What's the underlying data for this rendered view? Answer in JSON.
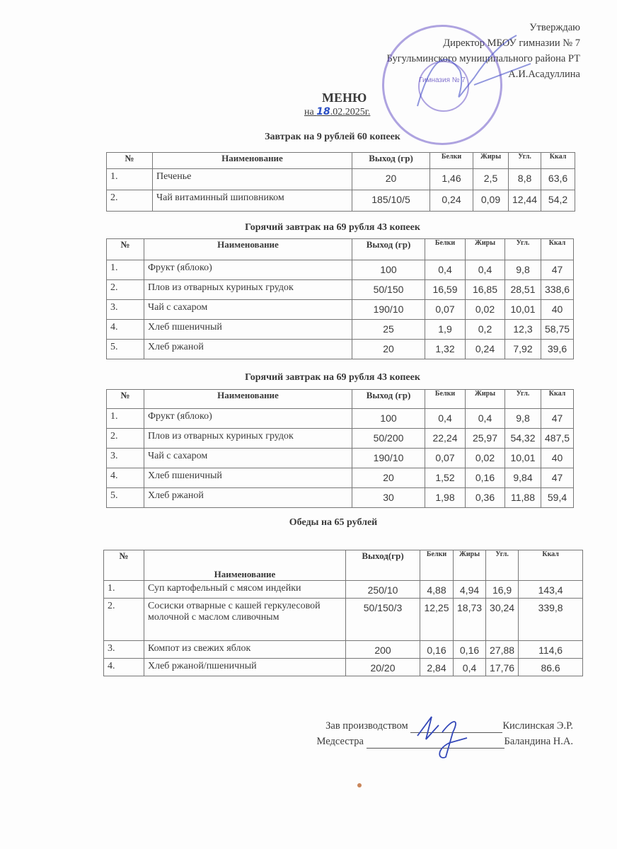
{
  "approval": {
    "line1": "Утверждаю",
    "line2": "Директор МБОУ гимназии № 7",
    "line3": "Бугульминского муниципального района РТ",
    "line4": "А.И.Асадуллина"
  },
  "stamp": {
    "text": "Гимназия № 7",
    "color": "#6e5ac8"
  },
  "title": "МЕНЮ",
  "date": {
    "prefix": "на ",
    "day": "18",
    "rest": ".02.2025г."
  },
  "sections": [
    {
      "title": "Завтрак на 9 рублей 60 копеек",
      "headers": [
        "№",
        "Наименование",
        "Выход (гр)",
        "Белки",
        "Жиры",
        "Угл.",
        "Ккал"
      ],
      "rows": [
        [
          "1.",
          "Печенье",
          "20",
          "1,46",
          "2,5",
          "8,8",
          "63,6"
        ],
        [
          "2.",
          "Чай витаминный шиповником",
          "185/10/5",
          "0,24",
          "0,09",
          "12,44",
          "54,2"
        ]
      ]
    },
    {
      "title": "Горячий завтрак на 69 рубля 43 копеек",
      "headers": [
        "№",
        "Наименование",
        "Выход (гр)",
        "Белки",
        "Жиры",
        "Угл.",
        "Ккал"
      ],
      "rows": [
        [
          "1.",
          "Фрукт (яблоко)",
          "100",
          "0,4",
          "0,4",
          "9,8",
          "47"
        ],
        [
          "2.",
          "Плов из отварных куриных грудок",
          "50/150",
          "16,59",
          "16,85",
          "28,51",
          "338,6"
        ],
        [
          "3.",
          "Чай с сахаром",
          "190/10",
          "0,07",
          "0,02",
          "10,01",
          "40"
        ],
        [
          "4.",
          "Хлеб пшеничный",
          "25",
          "1,9",
          "0,2",
          "12,3",
          "58,75"
        ],
        [
          "5.",
          "Хлеб ржаной",
          "20",
          "1,32",
          "0,24",
          "7,92",
          "39,6"
        ]
      ]
    },
    {
      "title": "Горячий завтрак на 69 рубля 43 копеек",
      "headers": [
        "№",
        "Наименование",
        "Выход (гр)",
        "Белки",
        "Жиры",
        "Угл.",
        "Ккал"
      ],
      "rows": [
        [
          "1.",
          "Фрукт (яблоко)",
          "100",
          "0,4",
          "0,4",
          "9,8",
          "47"
        ],
        [
          "2.",
          "Плов из отварных куриных грудок",
          "50/200",
          "22,24",
          "25,97",
          "54,32",
          "487,5"
        ],
        [
          "3.",
          "Чай с сахаром",
          "190/10",
          "0,07",
          "0,02",
          "10,01",
          "40"
        ],
        [
          "4.",
          "Хлеб пшеничный",
          "20",
          "1,52",
          "0,16",
          "9,84",
          "47"
        ],
        [
          "5.",
          "Хлеб ржаной",
          "30",
          "1,98",
          "0,36",
          "11,88",
          "59,4"
        ]
      ]
    },
    {
      "title": "Обеды на 65 рублей",
      "headers": [
        "№",
        "Наименование",
        "Выход(гр)",
        "Белки",
        "Жиры",
        "Угл.",
        "Ккал"
      ],
      "rows": [
        [
          "1.",
          "Суп картофельный с мясом индейки",
          "250/10",
          "4,88",
          "4,94",
          "16,9",
          "143,4"
        ],
        [
          "2.",
          "Сосиски отварные с кашей геркулесовой молочной с маслом сливочным",
          "50/150/3",
          "12,25",
          "18,73",
          "30,24",
          "339,8"
        ],
        [
          "3.",
          "Компот из свежих яблок",
          "200",
          "0,16",
          "0,16",
          "27,88",
          "114,6"
        ],
        [
          "4.",
          "Хлеб ржаной/пшеничный",
          "20/20",
          "2,84",
          "0,4",
          "17,76",
          "86.6"
        ]
      ]
    }
  ],
  "signatures": [
    {
      "role": "Зав производством",
      "name": "Кислинская Э.Р."
    },
    {
      "role": "Медсестра",
      "name": "Баландина Н.А."
    }
  ]
}
